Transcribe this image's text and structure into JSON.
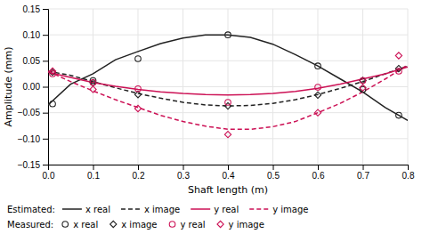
{
  "chart_data": {
    "type": "line",
    "xlabel": "Shaft length (m)",
    "ylabel": "Amplitude (mm)",
    "xlim": [
      0,
      0.8
    ],
    "ylim": [
      -0.15,
      0.15
    ],
    "xticks": [
      {
        "value": 0,
        "label": "0.0"
      },
      0.1,
      0.2,
      0.3,
      0.4,
      0.5,
      0.6,
      0.7,
      0.8
    ],
    "yticks": [
      {
        "value": -0.15,
        "label": "−0.15"
      },
      {
        "value": -0.1,
        "label": "−0.10"
      },
      {
        "value": -0.05,
        "label": "−0.05"
      },
      {
        "value": 0,
        "label": "0.00"
      },
      0.05,
      {
        "value": 0.1,
        "label": "0.10"
      },
      0.15
    ],
    "grid": true,
    "legend": "bottom",
    "legend_titles": [
      "Estimated:",
      "Measured:"
    ],
    "series": [
      {
        "name": "x real",
        "type": "line",
        "color": "#222222",
        "line_style": "solid",
        "x": [
          0,
          0.05,
          0.1,
          0.15,
          0.2,
          0.25,
          0.3,
          0.35,
          0.4,
          0.45,
          0.5,
          0.55,
          0.6,
          0.65,
          0.7,
          0.75,
          0.8
        ],
        "values": [
          -0.035,
          0.005,
          0.025,
          0.052,
          0.068,
          0.083,
          0.094,
          0.1,
          0.1,
          0.095,
          0.082,
          0.062,
          0.04,
          0.015,
          -0.01,
          -0.04,
          -0.065
        ]
      },
      {
        "name": "x image",
        "type": "line",
        "color": "#222222",
        "line_style": "dashed",
        "x": [
          0,
          0.05,
          0.1,
          0.15,
          0.2,
          0.25,
          0.3,
          0.35,
          0.4,
          0.45,
          0.5,
          0.55,
          0.6,
          0.65,
          0.7,
          0.75,
          0.8
        ],
        "values": [
          0.03,
          0.022,
          0.01,
          -0.002,
          -0.013,
          -0.022,
          -0.03,
          -0.035,
          -0.037,
          -0.036,
          -0.032,
          -0.025,
          -0.015,
          -0.003,
          0.01,
          0.025,
          0.04
        ]
      },
      {
        "name": "y real",
        "type": "line",
        "color": "#cc1155",
        "line_style": "solid",
        "x": [
          0,
          0.05,
          0.1,
          0.15,
          0.2,
          0.25,
          0.3,
          0.35,
          0.4,
          0.45,
          0.5,
          0.55,
          0.6,
          0.65,
          0.7,
          0.75,
          0.8
        ],
        "values": [
          0.028,
          0.018,
          0.008,
          0.001,
          -0.005,
          -0.01,
          -0.013,
          -0.015,
          -0.016,
          -0.015,
          -0.013,
          -0.009,
          -0.003,
          0.005,
          0.015,
          0.025,
          0.038
        ]
      },
      {
        "name": "y image",
        "type": "line",
        "color": "#cc1155",
        "line_style": "dashed",
        "x": [
          0,
          0.05,
          0.1,
          0.15,
          0.2,
          0.25,
          0.3,
          0.35,
          0.4,
          0.45,
          0.5,
          0.55,
          0.6,
          0.65,
          0.7,
          0.75,
          0.8
        ],
        "values": [
          0.03,
          0.01,
          -0.008,
          -0.025,
          -0.04,
          -0.055,
          -0.067,
          -0.076,
          -0.082,
          -0.082,
          -0.077,
          -0.067,
          -0.05,
          -0.032,
          -0.01,
          0.015,
          0.042
        ]
      },
      {
        "name": "x real",
        "type": "scatter",
        "color": "#222222",
        "marker": "circle",
        "x": [
          0.01,
          0.1,
          0.2,
          0.4,
          0.6,
          0.7,
          0.78
        ],
        "values": [
          -0.033,
          0.012,
          0.054,
          0.1,
          0.04,
          -0.005,
          -0.055
        ]
      },
      {
        "name": "x image",
        "type": "scatter",
        "color": "#222222",
        "marker": "diamond",
        "x": [
          0.01,
          0.1,
          0.2,
          0.4,
          0.6,
          0.7,
          0.78
        ],
        "values": [
          0.028,
          0.008,
          -0.015,
          -0.037,
          -0.016,
          0.012,
          0.035
        ]
      },
      {
        "name": "y real",
        "type": "scatter",
        "color": "#cc1155",
        "marker": "circle",
        "x": [
          0.01,
          0.1,
          0.2,
          0.4,
          0.6,
          0.7,
          0.78
        ],
        "values": [
          0.025,
          0.008,
          -0.004,
          -0.03,
          -0.001,
          0.012,
          0.03
        ]
      },
      {
        "name": "y image",
        "type": "scatter",
        "color": "#cc1155",
        "marker": "diamond",
        "x": [
          0.01,
          0.1,
          0.2,
          0.4,
          0.6,
          0.7,
          0.78
        ],
        "values": [
          0.03,
          -0.005,
          -0.042,
          -0.092,
          -0.05,
          -0.002,
          0.06
        ]
      }
    ]
  }
}
